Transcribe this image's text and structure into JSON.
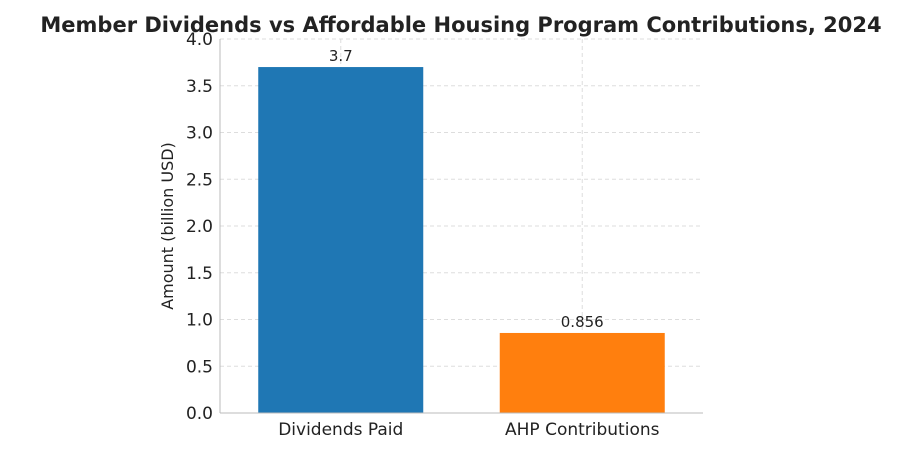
{
  "chart_data": {
    "type": "bar",
    "title": "Member Dividends vs Affordable Housing Program Contributions, 2024",
    "ylabel": "Amount (billion USD)",
    "xlabel": "",
    "categories": [
      "Dividends Paid",
      "AHP Contributions"
    ],
    "values": [
      3.7,
      0.856
    ],
    "value_labels": [
      "3.7",
      "0.856"
    ],
    "colors": [
      "#1f77b4",
      "#ff7f0e"
    ],
    "ylim": [
      0,
      4.0
    ],
    "yticks": [
      0.0,
      0.5,
      1.0,
      1.5,
      2.0,
      2.5,
      3.0,
      3.5,
      4.0
    ],
    "ytick_labels": [
      "0.0",
      "0.5",
      "1.0",
      "1.5",
      "2.0",
      "2.5",
      "3.0",
      "3.5",
      "4.0"
    ],
    "grid": true,
    "legend": "none"
  }
}
